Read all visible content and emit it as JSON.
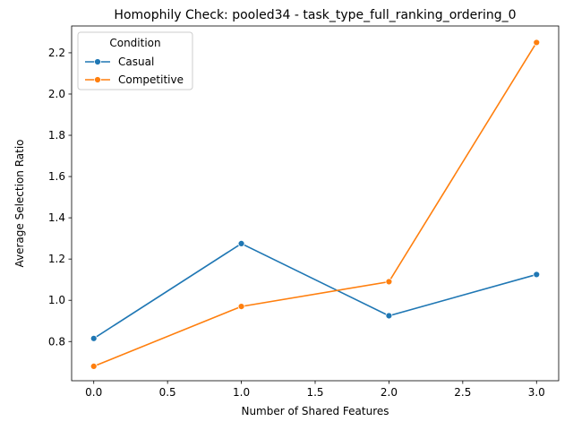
{
  "chart_data": {
    "type": "line",
    "title": "Homophily Check: pooled34 - task_type_full_ranking_ordering_0",
    "xlabel": "Number of Shared Features",
    "ylabel": "Average Selection Ratio",
    "xlim": [
      -0.15,
      3.15
    ],
    "ylim": [
      0.61,
      2.33
    ],
    "xticks": [
      0.0,
      0.5,
      1.0,
      1.5,
      2.0,
      2.5,
      3.0
    ],
    "xtick_labels": [
      "0.0",
      "0.5",
      "1.0",
      "1.5",
      "2.0",
      "2.5",
      "3.0"
    ],
    "yticks": [
      0.8,
      1.0,
      1.2,
      1.4,
      1.6,
      1.8,
      2.0,
      2.2
    ],
    "ytick_labels": [
      "0.8",
      "1.0",
      "1.2",
      "1.4",
      "1.6",
      "1.8",
      "2.0",
      "2.2"
    ],
    "x": [
      0,
      1,
      2,
      3
    ],
    "grid": false,
    "legend": {
      "title": "Condition",
      "position": "top-left"
    },
    "series": [
      {
        "name": "Casual",
        "color": "#1f77b4",
        "values": [
          0.815,
          1.275,
          0.925,
          1.125
        ]
      },
      {
        "name": "Competitive",
        "color": "#ff7f0e",
        "values": [
          0.68,
          0.97,
          1.09,
          2.25
        ]
      }
    ]
  }
}
